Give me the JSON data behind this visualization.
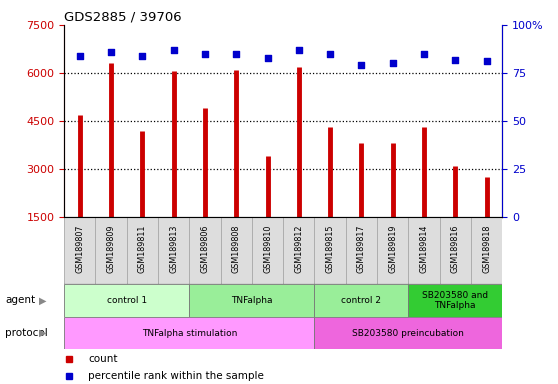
{
  "title": "GDS2885 / 39706",
  "samples": [
    "GSM189807",
    "GSM189809",
    "GSM189811",
    "GSM189813",
    "GSM189806",
    "GSM189808",
    "GSM189810",
    "GSM189812",
    "GSM189815",
    "GSM189817",
    "GSM189819",
    "GSM189814",
    "GSM189816",
    "GSM189818"
  ],
  "counts": [
    4700,
    6300,
    4200,
    6050,
    4900,
    6100,
    3400,
    6200,
    4300,
    3800,
    3800,
    4300,
    3100,
    2750
  ],
  "percentile_ranks": [
    84,
    86,
    84,
    87,
    85,
    85,
    83,
    87,
    85,
    79,
    80,
    85,
    82,
    81
  ],
  "ylim_left": [
    1500,
    7500
  ],
  "ylim_right": [
    0,
    100
  ],
  "yticks_left": [
    1500,
    3000,
    4500,
    6000,
    7500
  ],
  "yticks_right": [
    0,
    25,
    50,
    75,
    100
  ],
  "yticks_right_labels": [
    "0",
    "25",
    "50",
    "75",
    "100%"
  ],
  "grid_yticks": [
    3000,
    4500,
    6000
  ],
  "bar_color": "#cc0000",
  "dot_color": "#0000cc",
  "grid_color": "#000000",
  "agent_groups": [
    {
      "label": "control 1",
      "start": 0,
      "end": 4,
      "color": "#ccffcc"
    },
    {
      "label": "TNFalpha",
      "start": 4,
      "end": 8,
      "color": "#99ee99"
    },
    {
      "label": "control 2",
      "start": 8,
      "end": 11,
      "color": "#99ee99"
    },
    {
      "label": "SB203580 and\nTNFalpha",
      "start": 11,
      "end": 14,
      "color": "#33cc33"
    }
  ],
  "protocol_groups": [
    {
      "label": "TNFalpha stimulation",
      "start": 0,
      "end": 8,
      "color": "#ff99ff"
    },
    {
      "label": "SB203580 preincubation",
      "start": 8,
      "end": 14,
      "color": "#ee66dd"
    }
  ],
  "left_axis_color": "#cc0000",
  "right_axis_color": "#0000cc",
  "background_color": "#ffffff",
  "legend_count_color": "#cc0000",
  "legend_pct_color": "#0000cc",
  "sample_bg_color": "#dddddd",
  "sample_border_color": "#aaaaaa"
}
